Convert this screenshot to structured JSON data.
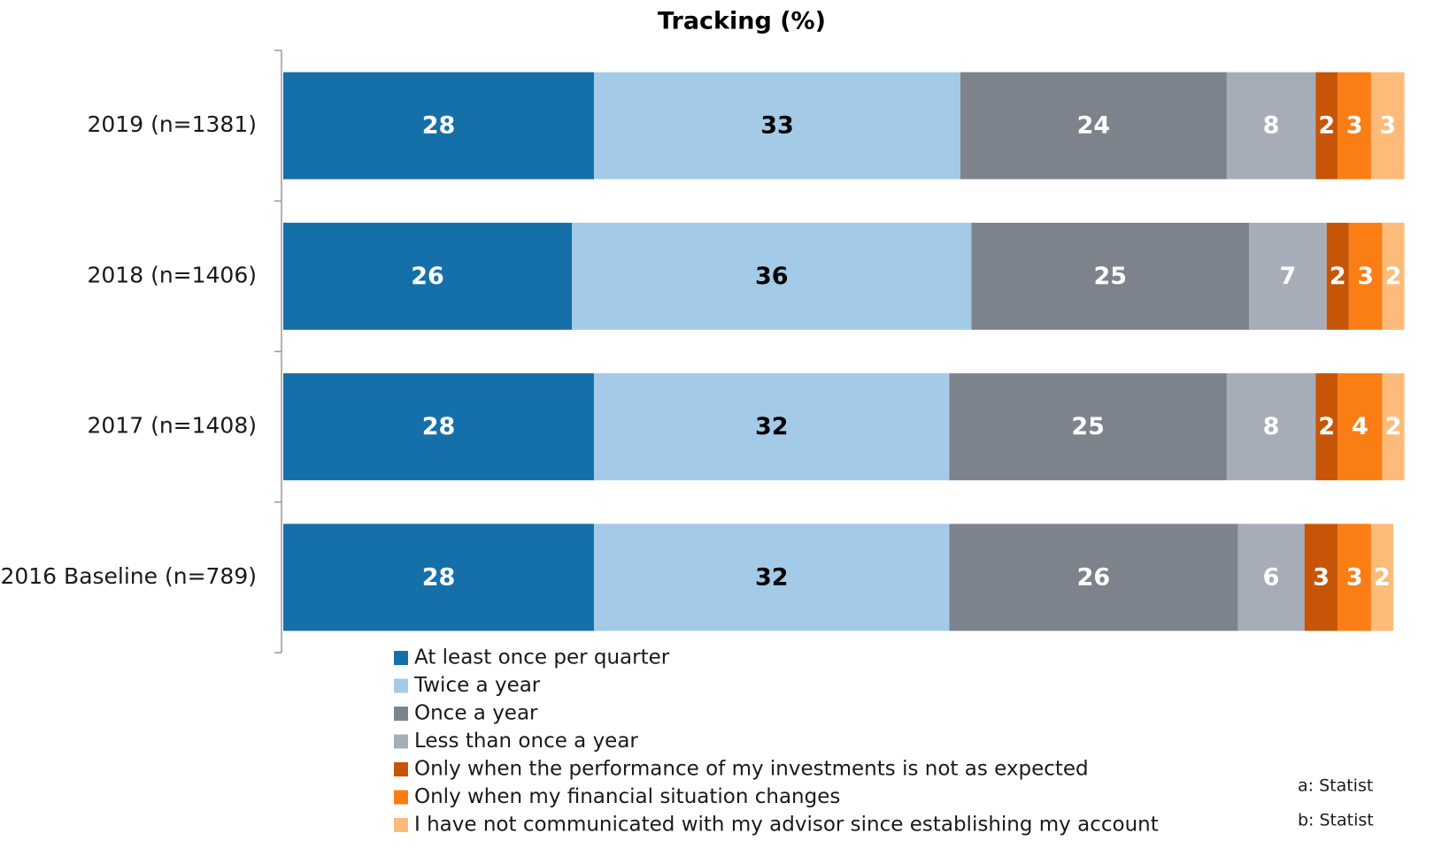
{
  "chart_data": {
    "type": "stacked_bar_horizontal",
    "title": "Tracking (%)",
    "categories": [
      "2019 (n=1381)",
      "2018 (n=1406)",
      "2017 (n=1408)",
      "2016 Baseline (n=789)"
    ],
    "xlim": [
      0,
      100
    ],
    "series": [
      {
        "name": "At least once per quarter",
        "color": "#1570aa",
        "label_color": "#ffffff",
        "values": [
          28,
          26,
          28,
          28
        ]
      },
      {
        "name": "Twice a year",
        "color": "#a3cbe8",
        "label_color": "#000000",
        "values": [
          33,
          36,
          32,
          32
        ]
      },
      {
        "name": "Once a year",
        "color": "#7d838c",
        "label_color": "#ffffff",
        "values": [
          24,
          25,
          25,
          26
        ]
      },
      {
        "name": "Less than once a year",
        "color": "#a6adb8",
        "label_color": "#ffffff",
        "values": [
          8,
          7,
          8,
          6
        ]
      },
      {
        "name": "Only when the performance of my investments is not as expected",
        "color": "#c65508",
        "label_color": "#ffffff",
        "values": [
          2,
          2,
          2,
          3
        ]
      },
      {
        "name": "Only when my financial situation changes",
        "color": "#fb7e14",
        "label_color": "#ffffff",
        "values": [
          3,
          3,
          4,
          3
        ]
      },
      {
        "name": "I have not communicated with my advisor since establishing my account",
        "color": "#fdbb79",
        "label_color": "#ffffff",
        "values": [
          3,
          2,
          2,
          2
        ]
      }
    ],
    "footnotes": [
      "a: Statist",
      "b: Statist"
    ]
  }
}
